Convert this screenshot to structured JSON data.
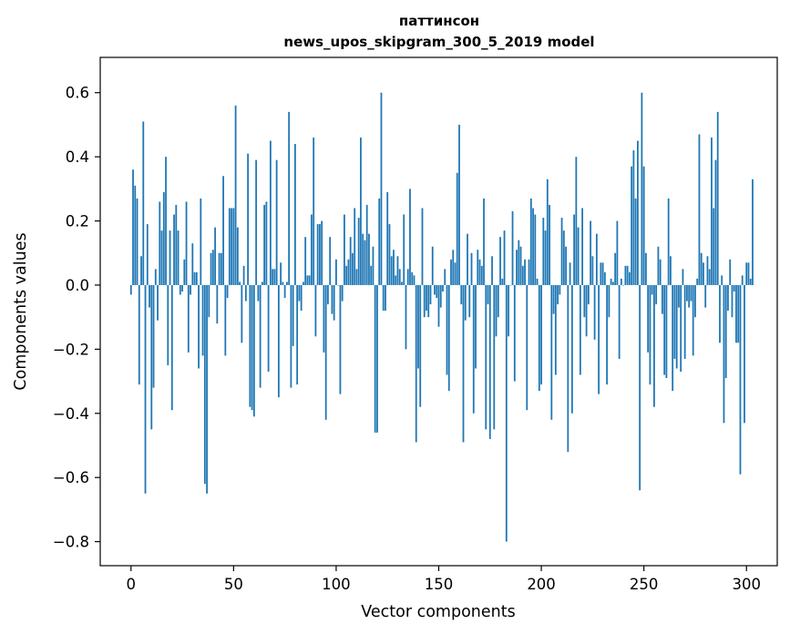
{
  "chart_data": {
    "type": "bar",
    "title_line1": "паттинсон",
    "title_line2": "news_upos_skipgram_300_5_2019 model",
    "xlabel": "Vector components",
    "ylabel": "Components values",
    "xlim": [
      -15,
      315
    ],
    "ylim": [
      -0.875,
      0.71
    ],
    "xticks": [
      0,
      50,
      100,
      150,
      200,
      250,
      300
    ],
    "xtick_labels": [
      "0",
      "50",
      "100",
      "150",
      "200",
      "250",
      "300"
    ],
    "yticks": [
      -0.8,
      -0.6,
      -0.4,
      -0.2,
      0.0,
      0.2,
      0.4,
      0.6
    ],
    "ytick_labels": [
      "−0.8",
      "−0.6",
      "−0.4",
      "−0.2",
      "0.0",
      "0.2",
      "0.4",
      "0.6"
    ],
    "bar_color": "#1f77b4",
    "values": [
      -0.03,
      0.36,
      0.31,
      0.27,
      -0.31,
      0.09,
      0.51,
      -0.65,
      0.19,
      -0.07,
      -0.45,
      -0.32,
      0.05,
      -0.11,
      0.26,
      0.17,
      0.29,
      0.4,
      -0.25,
      0.17,
      -0.39,
      0.22,
      0.25,
      0.17,
      -0.03,
      -0.02,
      0.08,
      0.26,
      -0.21,
      -0.03,
      0.13,
      0.04,
      0.04,
      -0.26,
      0.27,
      -0.22,
      -0.62,
      -0.65,
      -0.1,
      0.1,
      0.11,
      0.18,
      -0.12,
      0.1,
      0.1,
      0.34,
      -0.22,
      -0.04,
      0.24,
      0.24,
      0.24,
      0.56,
      0.18,
      0.01,
      -0.18,
      0.06,
      -0.05,
      0.41,
      -0.38,
      -0.39,
      -0.41,
      0.39,
      -0.05,
      -0.32,
      0.01,
      0.25,
      0.26,
      -0.27,
      0.45,
      0.05,
      0.05,
      0.39,
      -0.35,
      0.07,
      0.01,
      -0.04,
      0.01,
      0.54,
      -0.32,
      -0.19,
      0.44,
      -0.31,
      -0.05,
      -0.08,
      0.01,
      0.15,
      0.03,
      0.03,
      0.22,
      0.46,
      -0.16,
      0.19,
      0.19,
      0.2,
      -0.21,
      -0.42,
      -0.06,
      0.15,
      -0.09,
      -0.11,
      0.08,
      0.0,
      -0.34,
      -0.05,
      0.22,
      0.06,
      0.08,
      0.15,
      0.1,
      0.24,
      0.05,
      0.21,
      0.46,
      0.16,
      0.14,
      0.25,
      0.16,
      0.06,
      0.12,
      -0.46,
      -0.46,
      0.27,
      0.6,
      -0.08,
      -0.08,
      0.29,
      0.19,
      0.09,
      0.11,
      0.03,
      0.09,
      0.05,
      0.01,
      0.22,
      -0.2,
      0.05,
      0.3,
      0.04,
      0.03,
      -0.49,
      -0.26,
      -0.38,
      0.24,
      -0.1,
      -0.08,
      -0.1,
      -0.06,
      0.12,
      -0.03,
      -0.04,
      -0.13,
      -0.07,
      -0.02,
      0.05,
      -0.28,
      -0.33,
      0.08,
      0.11,
      0.07,
      0.35,
      0.5,
      -0.06,
      -0.49,
      -0.11,
      0.16,
      -0.1,
      0.1,
      -0.4,
      -0.26,
      0.11,
      0.08,
      0.06,
      0.27,
      -0.45,
      -0.06,
      -0.48,
      0.09,
      -0.45,
      -0.16,
      -0.1,
      0.15,
      0.02,
      0.17,
      -0.8,
      -0.16,
      0.0,
      0.23,
      -0.3,
      0.11,
      0.14,
      0.12,
      0.06,
      0.08,
      -0.39,
      0.08,
      0.27,
      0.24,
      0.22,
      0.02,
      -0.33,
      -0.31,
      0.21,
      0.17,
      0.33,
      0.25,
      -0.42,
      -0.09,
      -0.28,
      -0.06,
      -0.03,
      0.21,
      0.17,
      0.12,
      -0.52,
      0.07,
      -0.4,
      0.22,
      0.4,
      0.18,
      -0.28,
      0.24,
      -0.1,
      -0.16,
      -0.06,
      0.2,
      0.09,
      -0.17,
      0.16,
      -0.34,
      0.07,
      0.07,
      0.04,
      -0.31,
      -0.1,
      0.02,
      0.01,
      0.1,
      0.2,
      -0.23,
      0.02,
      0.0,
      0.06,
      0.06,
      0.04,
      0.37,
      0.42,
      0.27,
      0.45,
      -0.64,
      0.6,
      0.37,
      0.1,
      -0.21,
      -0.31,
      -0.03,
      -0.38,
      -0.06,
      0.12,
      0.08,
      -0.09,
      -0.28,
      -0.29,
      0.27,
      0.09,
      -0.33,
      -0.23,
      -0.26,
      -0.07,
      -0.27,
      0.05,
      -0.23,
      -0.05,
      -0.07,
      -0.05,
      -0.22,
      -0.1,
      0.02,
      0.47,
      0.1,
      0.07,
      -0.07,
      0.09,
      0.05,
      0.46,
      0.24,
      0.39,
      0.54,
      -0.18,
      0.03,
      -0.43,
      -0.29,
      -0.08,
      0.08,
      -0.1,
      -0.02,
      -0.18,
      -0.18,
      -0.59,
      0.03,
      -0.43,
      0.07,
      0.07,
      0.02,
      0.33
    ]
  }
}
